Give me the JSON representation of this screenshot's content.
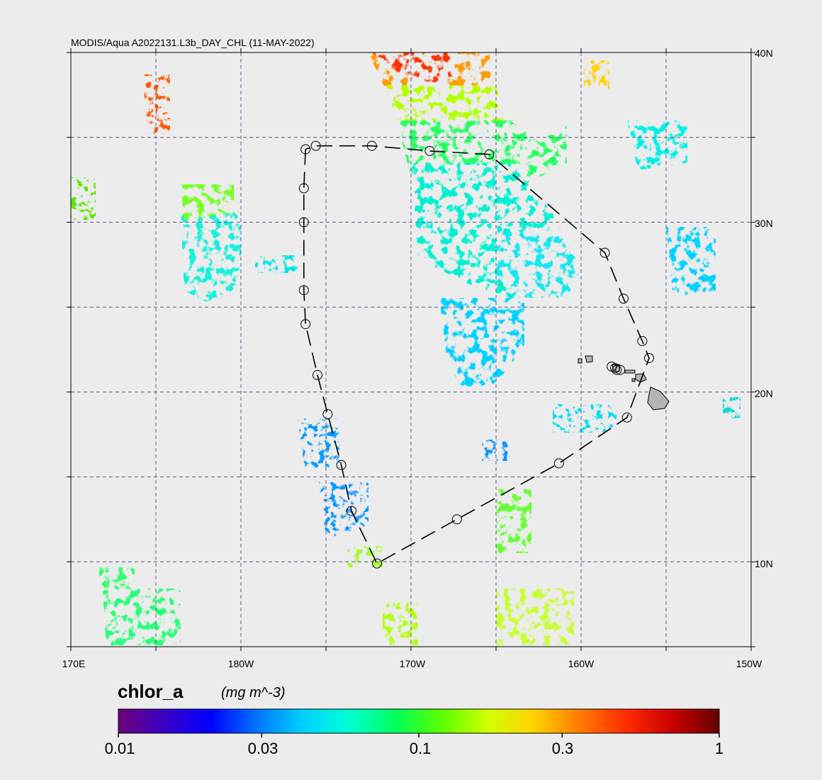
{
  "title": "MODIS/Aqua A2022131.L3b_DAY_CHL (11-MAY-2022)",
  "lon_ticks": [
    "170E",
    "180W",
    "170W",
    "160W",
    "150W"
  ],
  "lat_ticks": [
    "40N",
    "30N",
    "20N",
    "10N"
  ],
  "colorbar": {
    "variable": "chlor_a",
    "units": "(mg m^-3)",
    "tick_labels": [
      "0.01",
      "0.03",
      "0.1",
      "0.3",
      "1"
    ],
    "tick_values": [
      0.01,
      0.03,
      0.1,
      0.3,
      1
    ],
    "range": [
      0.01,
      1
    ],
    "scale": "log",
    "colors": [
      "#6e0077",
      "#3a00c8",
      "#0000ff",
      "#0074ff",
      "#00d2ff",
      "#00ffd2",
      "#00ff5a",
      "#5aff00",
      "#d2ff00",
      "#ffd200",
      "#ff7a00",
      "#ff2a00",
      "#c80000",
      "#640000"
    ]
  },
  "map": {
    "lon_range": [
      "170E",
      "150W"
    ],
    "lat_range": [
      "5N",
      "40N"
    ],
    "grid": true,
    "grid_color": "#5a5a8c",
    "island_color": "#b4b4b4"
  },
  "cruise_track_stations": [
    {
      "lon": -176.2,
      "lat": 34.3
    },
    {
      "lon": -176.3,
      "lat": 32.0
    },
    {
      "lon": -176.3,
      "lat": 30.0
    },
    {
      "lon": -176.3,
      "lat": 26.0
    },
    {
      "lon": -176.2,
      "lat": 24.0
    },
    {
      "lon": -175.5,
      "lat": 21.0
    },
    {
      "lon": -174.9,
      "lat": 18.7
    },
    {
      "lon": -174.1,
      "lat": 15.7
    },
    {
      "lon": -173.5,
      "lat": 13.0
    },
    {
      "lon": -172.0,
      "lat": 9.9
    },
    {
      "lon": -167.3,
      "lat": 12.5
    },
    {
      "lon": -161.3,
      "lat": 15.8
    },
    {
      "lon": -157.3,
      "lat": 18.5
    },
    {
      "lon": -158.6,
      "lat": 28.2
    },
    {
      "lon": -157.5,
      "lat": 25.5
    },
    {
      "lon": -156.4,
      "lat": 23.0
    },
    {
      "lon": -156.0,
      "lat": 22.0
    },
    {
      "lon": -175.6,
      "lat": 34.5
    },
    {
      "lon": -172.3,
      "lat": 34.5
    },
    {
      "lon": -168.9,
      "lat": 34.2
    },
    {
      "lon": -165.4,
      "lat": 34.0
    }
  ]
}
